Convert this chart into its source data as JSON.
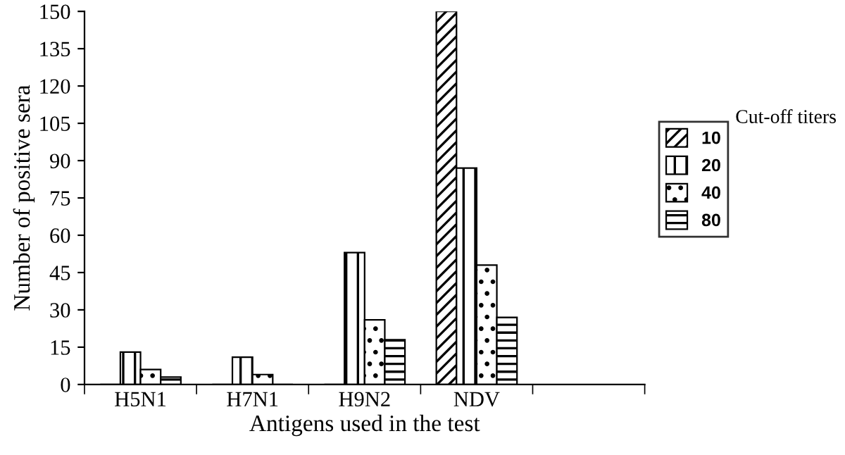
{
  "chart_data": {
    "type": "bar",
    "xlabel": "Antigens used in the test",
    "ylabel": "Number of positive sera",
    "legend_title": "Cut-off titers",
    "categories": [
      "H5N1",
      "H7N1",
      "H9N2",
      "NDV",
      null
    ],
    "series": [
      {
        "name": "10",
        "color": "#000000",
        "values": [
          0,
          0,
          0,
          150,
          null
        ]
      },
      {
        "name": "20",
        "color": "#000000",
        "values": [
          13,
          11,
          53,
          87,
          null
        ]
      },
      {
        "name": "40",
        "color": "#000000",
        "values": [
          6,
          4,
          26,
          48,
          null
        ]
      },
      {
        "name": "80",
        "color": "#000000",
        "values": [
          3,
          0,
          18,
          27,
          null
        ]
      }
    ],
    "ylim": [
      0,
      150
    ],
    "yticks": [
      0,
      15,
      30,
      45,
      60,
      75,
      90,
      105,
      120,
      135,
      150
    ],
    "grid": false,
    "legend": "right"
  }
}
